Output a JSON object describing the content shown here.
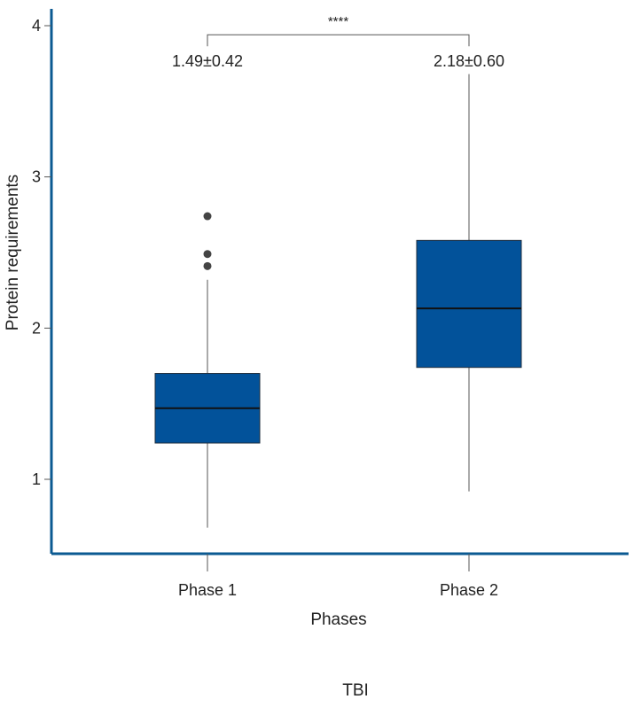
{
  "chart_data": {
    "type": "box",
    "title": "",
    "xlabel": "Phases",
    "ylabel": "Protein requirements",
    "caption": "TBI",
    "ylim": [
      0.5,
      4.1
    ],
    "yticks": [
      1,
      2,
      3,
      4
    ],
    "categories": [
      "Phase 1",
      "Phase 2"
    ],
    "boxes": [
      {
        "name": "Phase 1",
        "whisker_low": 0.68,
        "q1": 1.24,
        "median": 1.47,
        "q3": 1.7,
        "whisker_high": 2.32,
        "outliers": [
          2.41,
          2.49,
          2.74
        ],
        "summary_label": "1.49±0.42"
      },
      {
        "name": "Phase 2",
        "whisker_low": 0.92,
        "q1": 1.74,
        "median": 2.13,
        "q3": 2.58,
        "whisker_high": 3.68,
        "outliers": [],
        "summary_label": "2.18±0.60"
      }
    ],
    "significance": {
      "label": "****",
      "from": "Phase 1",
      "to": "Phase 2",
      "y": 3.94
    },
    "colors": {
      "box_fill": "#02529a",
      "box_stroke": "#1f2d3d",
      "axis": "#0b5a92",
      "whisker": "#555555",
      "outlier": "#444444",
      "text": "#222222"
    }
  }
}
